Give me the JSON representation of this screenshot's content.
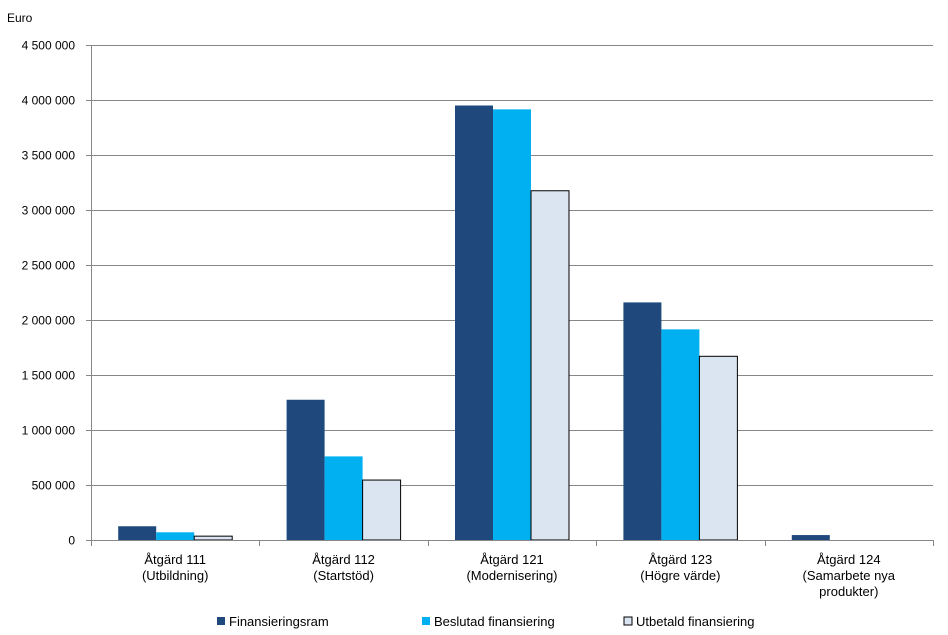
{
  "chart_data": {
    "type": "bar",
    "ylabel": "Euro",
    "ylim": [
      0,
      4500000
    ],
    "ytick_step": 500000,
    "ytick_labels": [
      "0",
      "500 000",
      "1 000 000",
      "1 500 000",
      "2 000 000",
      "2 500 000",
      "3 000 000",
      "3 500 000",
      "4 000 000",
      "4 500 000"
    ],
    "grid": true,
    "legend_position": "bottom",
    "categories": [
      [
        "Åtgärd 111",
        "(Utbildning)"
      ],
      [
        "Åtgärd 112",
        "(Startstöd)"
      ],
      [
        "Åtgärd 121",
        "(Modernisering)"
      ],
      [
        "Åtgärd 123",
        "(Högre värde)"
      ],
      [
        "Åtgärd 124",
        "(Samarbete nya",
        "produkter)"
      ]
    ],
    "series": [
      {
        "name": "Finansieringsram",
        "color": "#1F497D",
        "values": [
          125000,
          1275000,
          3950000,
          2160000,
          45000
        ]
      },
      {
        "name": "Beslutad finansiering",
        "color": "#00B0F0",
        "values": [
          70000,
          760000,
          3915000,
          1915000,
          0
        ]
      },
      {
        "name": "Utbetald finansiering",
        "color": "#DBE5F1",
        "values": [
          35000,
          545000,
          3175000,
          1670000,
          0
        ]
      }
    ]
  }
}
